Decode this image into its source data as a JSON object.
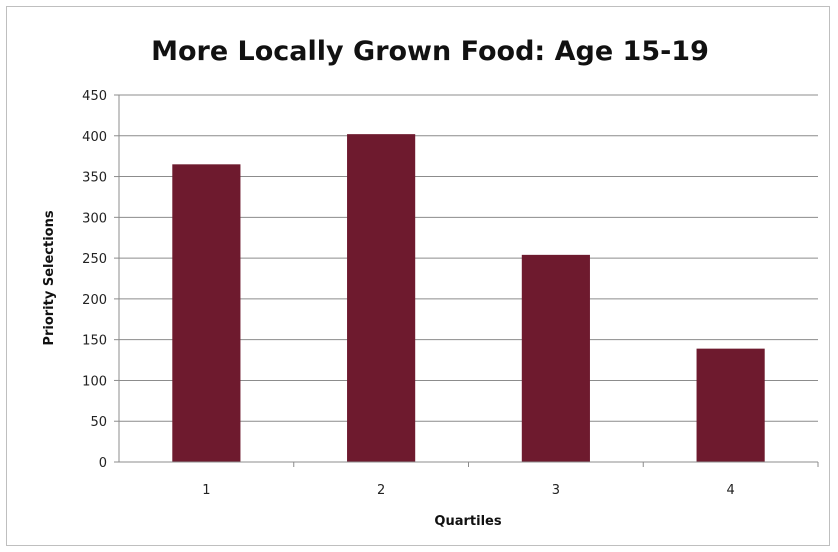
{
  "chart_data": {
    "type": "bar",
    "title": "More Locally Grown Food: Age 15-19",
    "xlabel": "Quartiles",
    "ylabel": "Priority Selections",
    "categories": [
      "1",
      "2",
      "3",
      "4"
    ],
    "values": [
      365,
      402,
      254,
      139
    ],
    "ylim": [
      0,
      450
    ],
    "yticks": [
      0,
      50,
      100,
      150,
      200,
      250,
      300,
      350,
      400,
      450
    ],
    "grid": true,
    "legend": "none",
    "bar_color": "#6e1a2e"
  }
}
